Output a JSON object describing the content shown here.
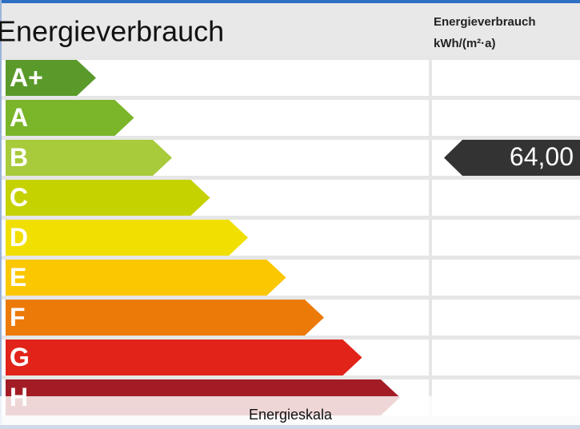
{
  "title": "Energieverbrauch",
  "column_header": {
    "line1": "Energieverbrauch",
    "line2": "kWh/(m²·a)"
  },
  "classes": [
    {
      "label": "A+",
      "color": "#5a9a2a"
    },
    {
      "label": "A",
      "color": "#7ab52a"
    },
    {
      "label": "B",
      "color": "#a7cb3a"
    },
    {
      "label": "C",
      "color": "#c6d200"
    },
    {
      "label": "D",
      "color": "#f0df00"
    },
    {
      "label": "E",
      "color": "#fbc700"
    },
    {
      "label": "F",
      "color": "#ec7a08"
    },
    {
      "label": "G",
      "color": "#e2231a"
    },
    {
      "label": "H",
      "color": "#a31c25"
    }
  ],
  "consumption": "64,00",
  "caption": "Energieskala"
}
